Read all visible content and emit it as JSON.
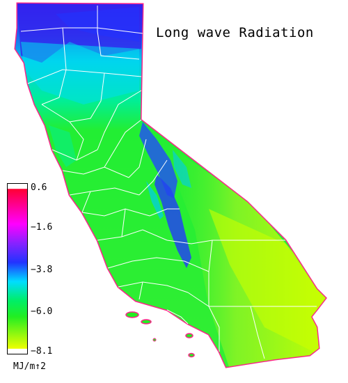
{
  "map": {
    "title": "Long wave Radiation",
    "region": "California",
    "legend": {
      "unit": "MJ/m↑2",
      "ticks": [
        "0.6",
        "−1.6",
        "−3.8",
        "−6.0",
        "−8.1"
      ],
      "colors": {
        "max": "#ff0033",
        "upper": "#ff00ff",
        "mid_high": "#3344ff",
        "mid": "#00e0ff",
        "mid_low": "#22ee22",
        "min": "#eeff00"
      }
    },
    "field_colors": {
      "north_coast": "#3322ee",
      "north_interior": "#00ddee",
      "central": "#22ee33",
      "sierra_crest": "#2255ee",
      "eastern_desert": "#ccff00",
      "coast_edge": "#ff2288",
      "county_lines": "#ffffff"
    }
  }
}
